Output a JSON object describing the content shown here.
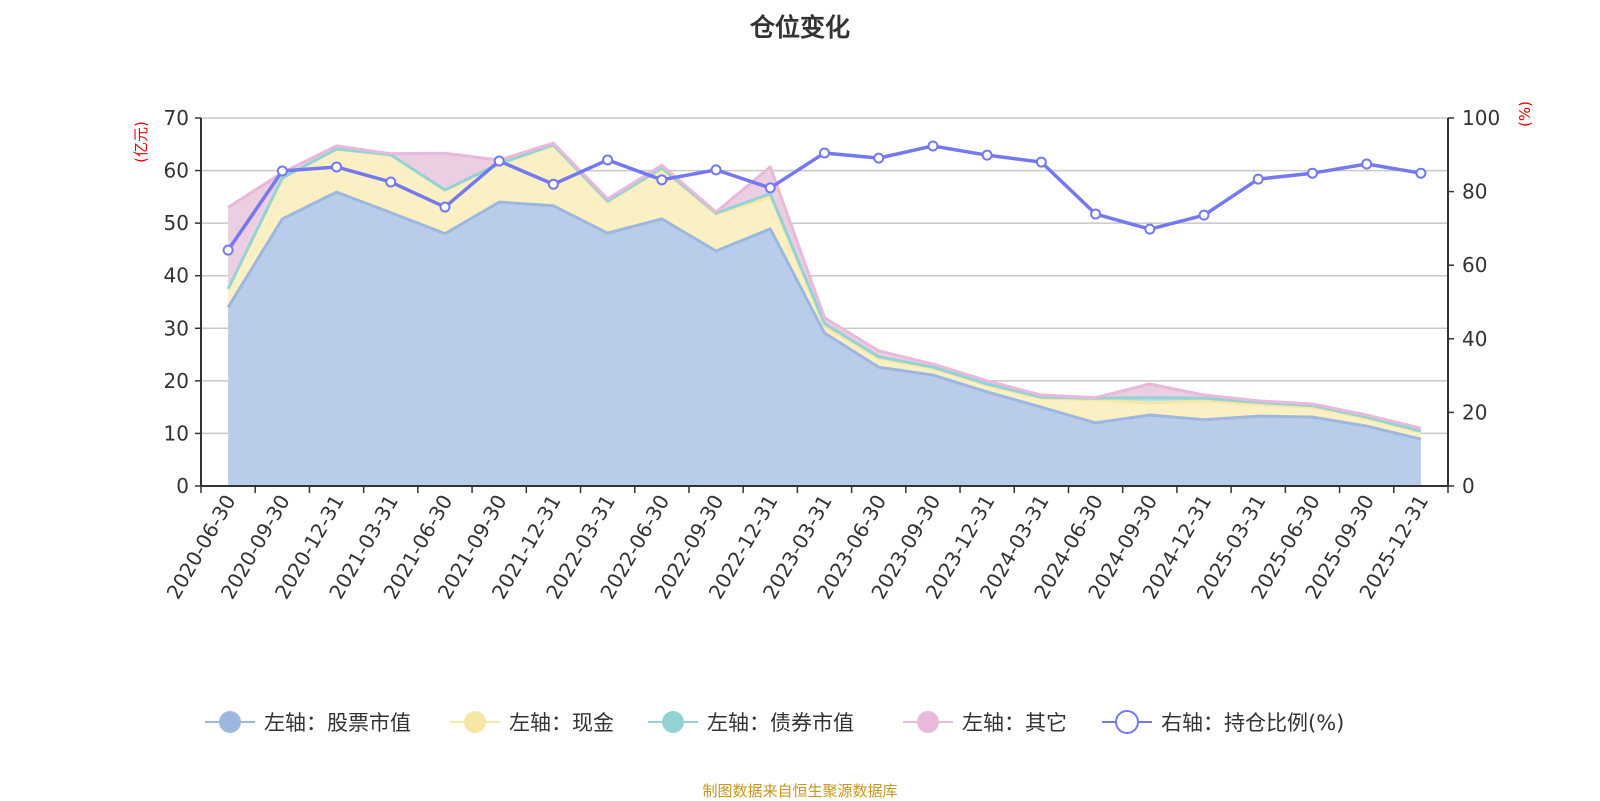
{
  "chart_data": {
    "type": "area",
    "title": "仓位变化",
    "left_unit": "(亿元)",
    "right_unit": "(%)",
    "ylim_left": [
      0,
      70
    ],
    "ylim_right": [
      0,
      100
    ],
    "left_ticks": [
      0,
      10,
      20,
      30,
      40,
      50,
      60,
      70
    ],
    "right_ticks": [
      0,
      20,
      40,
      60,
      80,
      100
    ],
    "grid": true,
    "legend_position": "bottom",
    "categories": [
      "2020-06-30",
      "2020-09-30",
      "2020-12-31",
      "2021-03-31",
      "2021-06-30",
      "2021-09-30",
      "2021-12-31",
      "2022-03-31",
      "2022-06-30",
      "2022-09-30",
      "2022-12-31",
      "2023-03-31",
      "2023-06-30",
      "2023-09-30",
      "2023-12-31",
      "2024-03-31",
      "2024-06-30",
      "2024-09-30",
      "2024-12-31",
      "2025-03-31",
      "2025-06-30",
      "2025-09-30",
      "2025-12-31"
    ],
    "series": [
      {
        "name": "左轴：股票市值",
        "axis": "left",
        "stacked": true,
        "color": "#9cb8e0",
        "fill": "#b9cdea",
        "values": [
          34.0,
          50.8,
          55.9,
          52.0,
          48.0,
          54.0,
          53.3,
          48.1,
          50.8,
          44.7,
          48.9,
          29.1,
          22.6,
          21.1,
          17.9,
          15.0,
          12.0,
          13.5,
          12.6,
          13.3,
          13.1,
          11.4,
          8.9
        ]
      },
      {
        "name": "左轴：现金",
        "axis": "left",
        "stacked": true,
        "color": "#f7e6a6",
        "fill": "#faf0c4",
        "values": [
          3.5,
          7.8,
          8.2,
          11.0,
          8.3,
          7.3,
          11.4,
          5.9,
          9.5,
          7.0,
          6.1,
          1.3,
          1.7,
          1.3,
          1.3,
          1.7,
          4.4,
          2.3,
          3.6,
          2.3,
          1.9,
          1.5,
          1.4
        ]
      },
      {
        "name": "左轴：债券市值",
        "axis": "left",
        "stacked": true,
        "color": "#93d3d3",
        "fill": "#b5e2e2",
        "values": [
          0,
          0,
          0,
          0,
          0,
          0,
          0.2,
          0.2,
          0.2,
          0.2,
          0.6,
          0.5,
          0.3,
          0.2,
          0.2,
          0.2,
          0.3,
          1.0,
          0.5,
          0.3,
          0.3,
          0.2,
          0.1
        ]
      },
      {
        "name": "左轴：其它",
        "axis": "left",
        "stacked": true,
        "color": "#e8b9da",
        "fill": "#eccee3",
        "values": [
          15.5,
          1.0,
          0.6,
          0.2,
          7.0,
          0.7,
          0.3,
          0.4,
          0.5,
          0.2,
          5.1,
          1.1,
          1.1,
          0.6,
          0.6,
          0.4,
          0.1,
          2.6,
          0.6,
          0.3,
          0.3,
          0.4,
          0.6
        ]
      },
      {
        "name": "右轴：持仓比例(%)",
        "axis": "right",
        "stacked": false,
        "color": "#7479f0",
        "values": [
          64.1,
          85.6,
          86.7,
          82.6,
          75.8,
          88.3,
          82.0,
          88.6,
          83.2,
          85.9,
          81.0,
          90.5,
          89.1,
          92.4,
          89.9,
          88.0,
          73.9,
          69.8,
          73.6,
          83.4,
          85.0,
          87.5,
          85.0
        ]
      }
    ]
  },
  "footer": {
    "source": "制图数据来自恒生聚源数据库"
  }
}
